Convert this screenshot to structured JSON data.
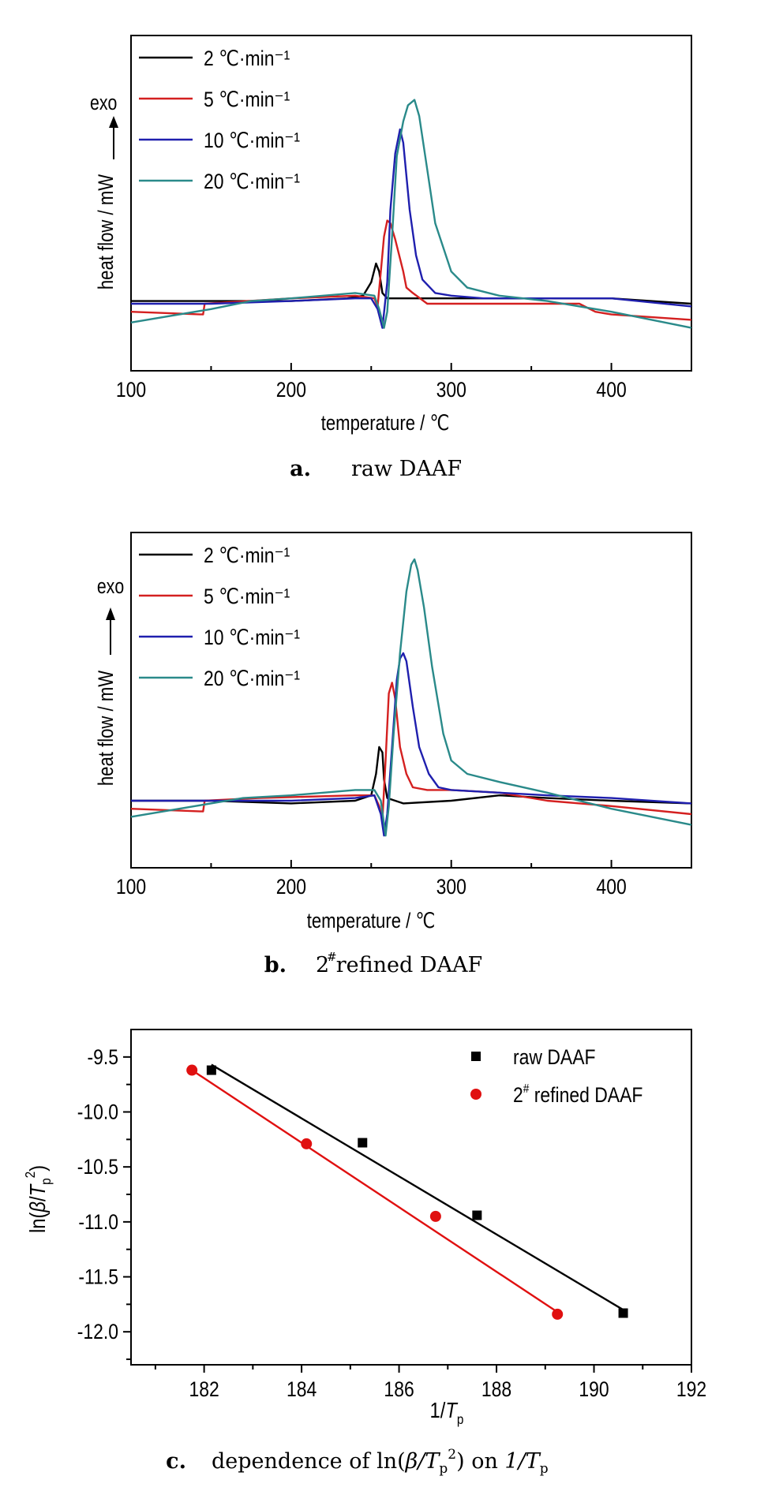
{
  "chart_data": [
    {
      "type": "line",
      "caption": {
        "letter": "a.",
        "text": "raw DAAF"
      },
      "xlabel": "temperature / ℃",
      "ylabel": "heat flow / mW",
      "exo_label": "exo",
      "xlim": [
        100,
        450
      ],
      "ylim": [
        -0.25,
        1.0
      ],
      "xticks": [
        "100",
        "200",
        "300",
        "400"
      ],
      "yticks_shown": false,
      "legend_position": "top-left",
      "series": [
        {
          "name": "2 ℃·min⁻¹",
          "color": "#000000",
          "x": [
            100,
            150,
            200,
            235,
            245,
            250,
            253,
            255,
            257,
            260,
            270,
            300,
            350,
            400,
            450
          ],
          "y": [
            0.01,
            0.01,
            0.01,
            0.02,
            0.03,
            0.08,
            0.15,
            0.12,
            0.04,
            0.02,
            0.02,
            0.02,
            0.02,
            0.02,
            0.0
          ]
        },
        {
          "name": "5 ℃·min⁻¹",
          "color": "#d42020",
          "x": [
            100,
            145,
            146,
            200,
            240,
            252,
            254,
            256,
            258,
            260,
            262,
            265,
            270,
            272,
            276,
            285,
            300,
            320,
            350,
            380,
            390,
            400,
            450
          ],
          "y": [
            -0.03,
            -0.04,
            0.0,
            0.02,
            0.03,
            0.02,
            -0.01,
            0.12,
            0.25,
            0.31,
            0.3,
            0.24,
            0.12,
            0.06,
            0.04,
            0.0,
            0.0,
            0.0,
            0.0,
            0.0,
            -0.03,
            -0.04,
            -0.06
          ]
        },
        {
          "name": "10 ℃·min⁻¹",
          "color": "#1f1fae",
          "x": [
            100,
            150,
            200,
            240,
            250,
            254,
            257,
            260,
            262,
            265,
            268,
            270,
            274,
            278,
            282,
            290,
            300,
            320,
            360,
            400,
            450
          ],
          "y": [
            0.0,
            0.0,
            0.01,
            0.02,
            0.02,
            -0.02,
            -0.09,
            0.08,
            0.35,
            0.56,
            0.65,
            0.6,
            0.35,
            0.18,
            0.09,
            0.04,
            0.03,
            0.02,
            0.02,
            0.02,
            -0.01
          ]
        },
        {
          "name": "20 ℃·min⁻¹",
          "color": "#2a8a8a",
          "x": [
            100,
            150,
            175,
            200,
            240,
            252,
            255,
            258,
            260,
            263,
            266,
            270,
            273,
            277,
            280,
            285,
            290,
            300,
            310,
            330,
            360,
            400,
            450
          ],
          "y": [
            -0.07,
            -0.02,
            0.01,
            0.02,
            0.04,
            0.03,
            -0.02,
            -0.09,
            -0.03,
            0.25,
            0.55,
            0.68,
            0.74,
            0.76,
            0.7,
            0.5,
            0.3,
            0.12,
            0.06,
            0.03,
            0.01,
            -0.03,
            -0.09
          ]
        }
      ]
    },
    {
      "type": "line",
      "caption": {
        "letter": "b.",
        "text": "2 refined DAAF",
        "superscript": "#"
      },
      "xlabel": "temperature / ℃",
      "ylabel": "heat flow / mW",
      "exo_label": "exo",
      "xlim": [
        100,
        450
      ],
      "ylim": [
        -0.25,
        1.0
      ],
      "xticks": [
        "100",
        "200",
        "300",
        "400"
      ],
      "yticks_shown": false,
      "legend_position": "top-left",
      "series": [
        {
          "name": "2 ℃·min⁻¹",
          "color": "#000000",
          "x": [
            100,
            150,
            200,
            240,
            250,
            253,
            255,
            257,
            258,
            260,
            270,
            300,
            330,
            360,
            400,
            450
          ],
          "y": [
            0.0,
            0.0,
            -0.01,
            0.0,
            0.02,
            0.1,
            0.2,
            0.18,
            0.08,
            0.01,
            -0.01,
            0.0,
            0.02,
            0.01,
            0.0,
            -0.01
          ]
        },
        {
          "name": "5 ℃·min⁻¹",
          "color": "#d42020",
          "x": [
            100,
            145,
            146,
            180,
            240,
            252,
            255,
            257,
            259,
            261,
            263,
            265,
            268,
            272,
            276,
            285,
            300,
            330,
            360,
            400,
            450
          ],
          "y": [
            -0.03,
            -0.04,
            0.0,
            0.01,
            0.02,
            0.02,
            -0.02,
            -0.07,
            0.15,
            0.4,
            0.44,
            0.38,
            0.2,
            0.1,
            0.05,
            0.04,
            0.04,
            0.03,
            0.0,
            -0.02,
            -0.05
          ]
        },
        {
          "name": "10 ℃·min⁻¹",
          "color": "#1f1fae",
          "x": [
            100,
            150,
            200,
            240,
            252,
            256,
            258,
            260,
            263,
            266,
            268,
            270,
            272,
            276,
            280,
            286,
            292,
            300,
            330,
            360,
            400,
            450
          ],
          "y": [
            0.0,
            0.0,
            0.0,
            0.01,
            0.02,
            -0.05,
            -0.13,
            -0.05,
            0.2,
            0.45,
            0.53,
            0.55,
            0.52,
            0.35,
            0.2,
            0.1,
            0.05,
            0.04,
            0.03,
            0.02,
            0.01,
            -0.01
          ]
        },
        {
          "name": "20 ℃·min⁻¹",
          "color": "#2a8a8a",
          "x": [
            100,
            140,
            170,
            200,
            240,
            252,
            256,
            259,
            261,
            264,
            268,
            272,
            275,
            277,
            279,
            283,
            288,
            295,
            300,
            310,
            330,
            360,
            400,
            450
          ],
          "y": [
            -0.06,
            -0.02,
            0.01,
            0.02,
            0.04,
            0.04,
            0.0,
            -0.13,
            -0.02,
            0.25,
            0.55,
            0.78,
            0.88,
            0.9,
            0.86,
            0.72,
            0.5,
            0.25,
            0.15,
            0.1,
            0.07,
            0.03,
            -0.03,
            -0.09
          ]
        }
      ]
    },
    {
      "type": "scatter",
      "caption": {
        "letter": "c.",
        "text_before": "dependence of ln(",
        "beta": "β",
        "text_mid": "/T",
        "sub": "p",
        "sup": "2",
        "text_after": ") on ",
        "italic_1": "1/T",
        "sub2": "p"
      },
      "xlabel": "1/Tp",
      "ylabel": "ln(β/Tp²)",
      "xlim": [
        180.5,
        192
      ],
      "ylim": [
        -12.3,
        -9.25
      ],
      "xticks": [
        182,
        184,
        186,
        188,
        190,
        192
      ],
      "yticks": [
        -9.5,
        -10.0,
        -10.5,
        -11.0,
        -11.5,
        -12.0
      ],
      "ytick_labels": [
        "-9.5",
        "-10.0",
        "-10.5",
        "-11.0",
        "-11.5",
        "-12.0"
      ],
      "legend_position": "top-right",
      "series": [
        {
          "name": "raw DAAF",
          "marker": "square",
          "color": "#000000",
          "x": [
            182.15,
            185.25,
            187.6,
            190.6
          ],
          "y": [
            -9.62,
            -10.28,
            -10.94,
            -11.83
          ],
          "fit": {
            "x": [
              182.15,
              190.6
            ],
            "y": [
              -9.57,
              -11.8
            ]
          }
        },
        {
          "name": "2# refined DAAF",
          "name_parts": [
            "2",
            "#",
            " refined DAAF"
          ],
          "marker": "circle",
          "color": "#e01010",
          "x": [
            181.75,
            184.1,
            186.75,
            189.25
          ],
          "y": [
            -9.62,
            -10.29,
            -10.95,
            -11.84
          ],
          "fit": {
            "x": [
              181.75,
              189.25
            ],
            "y": [
              -9.62,
              -11.82
            ]
          }
        }
      ]
    }
  ]
}
